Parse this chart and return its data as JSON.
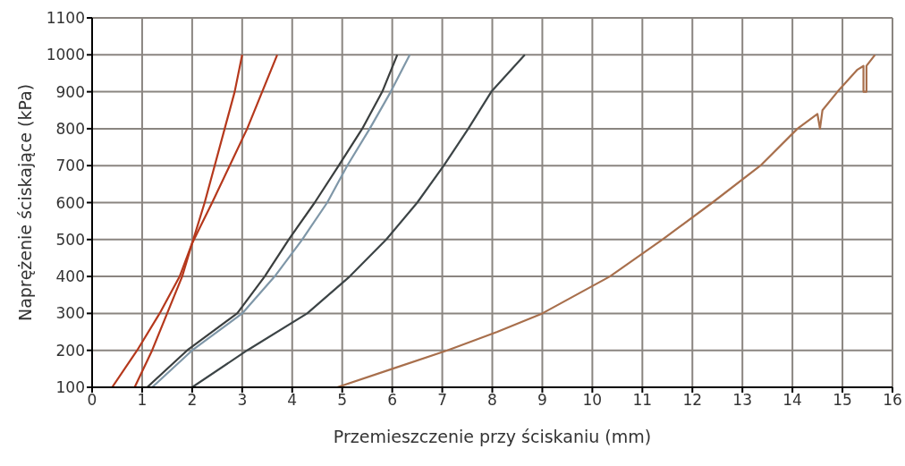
{
  "chart_data": {
    "type": "line",
    "xlabel": "Przemieszczenie przy ściskaniu (mm)",
    "ylabel": "Naprężenie ściskające (kPa)",
    "xlim": [
      0,
      16
    ],
    "xticks": [
      0,
      1,
      2,
      3,
      4,
      5,
      6,
      7,
      8,
      9,
      10,
      11,
      12,
      13,
      14,
      15,
      16
    ],
    "ylim": [
      100,
      1100
    ],
    "yticks": [
      100,
      200,
      300,
      400,
      500,
      600,
      700,
      800,
      900,
      1000,
      1100
    ],
    "grid": true,
    "marker": "none",
    "line_style": "solid",
    "series": [
      {
        "color": "#b5381c",
        "x": [
          0.4,
          0.9,
          1.35,
          1.75,
          2.0,
          2.4,
          2.75,
          3.1,
          3.4,
          3.7
        ],
        "values": [
          100,
          200,
          300,
          400,
          490,
          600,
          700,
          800,
          900,
          1000
        ]
      },
      {
        "color": "#b5381c",
        "x": [
          0.85,
          1.2,
          1.5,
          1.8,
          2.0,
          2.25,
          2.45,
          2.65,
          2.85,
          3.0
        ],
        "values": [
          100,
          200,
          300,
          400,
          490,
          600,
          700,
          800,
          900,
          1000
        ]
      },
      {
        "color": "#3a3e3e",
        "x": [
          1.1,
          1.9,
          2.9,
          3.45,
          3.93,
          4.45,
          4.93,
          5.4,
          5.8,
          6.1
        ],
        "values": [
          100,
          200,
          300,
          400,
          500,
          600,
          700,
          800,
          900,
          1000
        ]
      },
      {
        "color": "#7f97a8",
        "x": [
          1.2,
          2.0,
          3.0,
          3.65,
          4.2,
          4.7,
          5.1,
          5.55,
          5.97,
          6.35
        ],
        "values": [
          100,
          200,
          300,
          400,
          500,
          600,
          700,
          800,
          900,
          1000
        ]
      },
      {
        "color": "#3c4446",
        "x": [
          2.0,
          3.1,
          4.3,
          5.15,
          5.88,
          6.5,
          7.03,
          7.52,
          7.98,
          8.65
        ],
        "values": [
          100,
          200,
          300,
          400,
          500,
          600,
          700,
          800,
          900,
          1000
        ]
      },
      {
        "color": "#a86f4c",
        "x": [
          4.9,
          6.0,
          7.1,
          8.1,
          9.0,
          10.35,
          11.4,
          12.4,
          13.36,
          14.1,
          14.5,
          14.55,
          14.6,
          14.9,
          15.3,
          15.42,
          15.42,
          15.48,
          15.48,
          15.65
        ],
        "values": [
          100,
          150,
          200,
          250,
          300,
          400,
          500,
          600,
          700,
          800,
          840,
          800,
          850,
          900,
          960,
          970,
          900,
          900,
          970,
          1000
        ]
      }
    ]
  }
}
